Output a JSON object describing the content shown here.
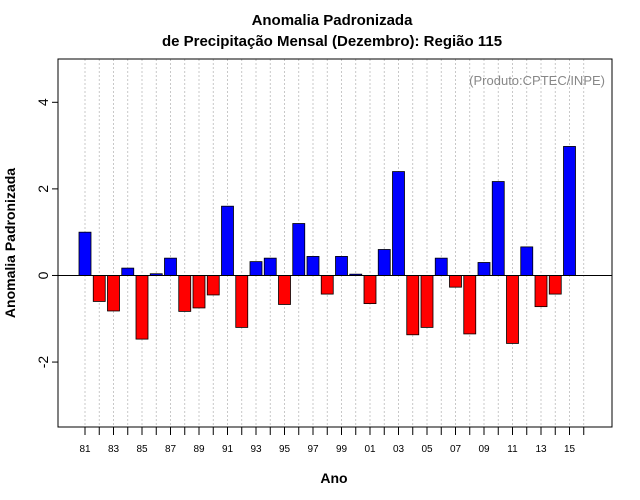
{
  "chart_data": {
    "type": "bar",
    "title": "Anomalia Padronizada",
    "subtitle": "de Precipitação Mensal (Dezembro): Região 115",
    "xlabel": "Ano",
    "ylabel": "Anomalia Padronizada",
    "credit": "(Produto:CPTEC/INPE)",
    "ylim": [
      -3.5,
      5.0
    ],
    "yticks": [
      -2,
      0,
      2,
      4
    ],
    "yticklabels": [
      "-2",
      "0",
      "2",
      "4"
    ],
    "xticklabels": [
      "81",
      "83",
      "85",
      "87",
      "89",
      "91",
      "93",
      "95",
      "97",
      "99",
      "01",
      "03",
      "05",
      "07",
      "09",
      "11",
      "13",
      "15"
    ],
    "categories": [
      "1981",
      "1982",
      "1983",
      "1984",
      "1985",
      "1986",
      "1987",
      "1988",
      "1989",
      "1990",
      "1991",
      "1992",
      "1993",
      "1994",
      "1995",
      "1996",
      "1997",
      "1998",
      "1999",
      "2000",
      "2001",
      "2002",
      "2003",
      "2004",
      "2005",
      "2006",
      "2007",
      "2008",
      "2009",
      "2010",
      "2011",
      "2012",
      "2013",
      "2014",
      "2015"
    ],
    "values": [
      1.0,
      -0.6,
      -0.82,
      0.17,
      -1.47,
      0.04,
      0.4,
      -0.83,
      -0.75,
      -0.45,
      1.6,
      -1.2,
      0.32,
      0.4,
      -0.67,
      1.2,
      0.44,
      -0.43,
      0.44,
      0.03,
      -0.65,
      0.6,
      2.4,
      -1.37,
      -1.2,
      0.4,
      -0.27,
      -1.35,
      0.3,
      2.17,
      -1.57,
      0.66,
      -0.72,
      -0.43,
      2.98
    ],
    "colors": {
      "positive": "#0000ff",
      "negative": "#ff0000",
      "grid": "#bbbbbb"
    },
    "grid": "vertical dashed",
    "zero_line": true
  }
}
